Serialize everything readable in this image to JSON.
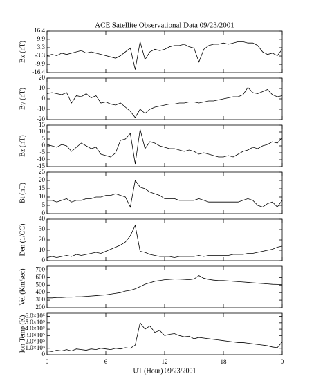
{
  "chart_data": [
    {
      "type": "line",
      "title": "ACE Satellite Observational Data   09/23/2001",
      "ylabel": "Bx (nT)",
      "color": "#000000",
      "x": [
        0,
        0.5,
        1,
        1.5,
        2,
        2.5,
        3,
        3.5,
        4,
        4.5,
        5,
        5.5,
        6,
        6.5,
        7,
        7.5,
        8,
        8.5,
        9,
        9.5,
        10,
        10.5,
        11,
        11.5,
        12,
        12.5,
        13,
        13.5,
        14,
        14.5,
        15,
        15.5,
        16,
        16.5,
        17,
        17.5,
        18,
        18.5,
        19,
        19.5,
        20,
        20.5,
        21,
        21.5,
        22,
        22.5,
        23,
        23.5,
        24
      ],
      "values": [
        -3,
        -2,
        -3,
        -1,
        -2,
        -1,
        0,
        1,
        -1,
        0,
        -1,
        -2,
        -3,
        -4,
        -5,
        -3,
        0,
        3,
        -14,
        8,
        -6,
        0,
        2,
        1,
        2,
        4,
        5,
        5,
        6,
        4,
        3,
        -8,
        2,
        5,
        6,
        6,
        7,
        6,
        7,
        8,
        8,
        7,
        7,
        5,
        0,
        -2,
        -1,
        -3,
        2
      ],
      "xlim": [
        0,
        24
      ],
      "xticks": [
        0,
        6,
        12,
        18,
        {
          "value": 24,
          "label": "0"
        }
      ],
      "ylim": [
        -16.4,
        16.4
      ],
      "yticks": [
        -16.4,
        -9.9,
        -3.3,
        3.3,
        9.9,
        16.4
      ]
    },
    {
      "type": "line",
      "ylabel": "By (nT)",
      "color": "#000000",
      "x": [
        0,
        0.5,
        1,
        1.5,
        2,
        2.5,
        3,
        3.5,
        4,
        4.5,
        5,
        5.5,
        6,
        6.5,
        7,
        7.5,
        8,
        8.5,
        9,
        9.5,
        10,
        10.5,
        11,
        11.5,
        12,
        12.5,
        13,
        13.5,
        14,
        14.5,
        15,
        15.5,
        16,
        16.5,
        17,
        17.5,
        18,
        18.5,
        19,
        19.5,
        20,
        20.5,
        21,
        21.5,
        22,
        22.5,
        23,
        23.5,
        24
      ],
      "values": [
        5,
        6,
        5,
        4,
        6,
        -4,
        3,
        2,
        5,
        1,
        3,
        -4,
        -3,
        -5,
        -6,
        -4,
        -8,
        -12,
        -18,
        -10,
        -14,
        -10,
        -8,
        -7,
        -6,
        -5,
        -5,
        -4,
        -4,
        -3,
        -3,
        -4,
        -3,
        -2,
        -2,
        -1,
        0,
        1,
        2,
        2,
        4,
        11,
        6,
        5,
        7,
        9,
        4,
        2,
        3
      ],
      "xlim": [
        0,
        24
      ],
      "xticks": [
        0,
        6,
        12,
        18,
        {
          "value": 24,
          "label": "0"
        }
      ],
      "ylim": [
        -20,
        20
      ],
      "yticks": [
        -20,
        -10,
        0,
        10,
        20
      ]
    },
    {
      "type": "line",
      "ylabel": "Bz (nT)",
      "color": "#000000",
      "x": [
        0,
        0.5,
        1,
        1.5,
        2,
        2.5,
        3,
        3.5,
        4,
        4.5,
        5,
        5.5,
        6,
        6.5,
        7,
        7.5,
        8,
        8.5,
        9,
        9.5,
        10,
        10.5,
        11,
        11.5,
        12,
        12.5,
        13,
        13.5,
        14,
        14.5,
        15,
        15.5,
        16,
        16.5,
        17,
        17.5,
        18,
        18.5,
        19,
        19.5,
        20,
        20.5,
        21,
        21.5,
        22,
        22.5,
        23,
        23.5,
        24
      ],
      "values": [
        1,
        0,
        -1,
        1,
        0,
        -4,
        -1,
        2,
        0,
        -2,
        -1,
        -6,
        -7,
        -8,
        -5,
        4,
        5,
        9,
        -13,
        12,
        -2,
        3,
        2,
        0,
        -1,
        -2,
        -2,
        -3,
        -4,
        -3,
        -4,
        -6,
        -5,
        -6,
        -7,
        -8,
        -8,
        -7,
        -8,
        -6,
        -4,
        -3,
        -1,
        -2,
        0,
        1,
        3,
        2,
        6
      ],
      "xlim": [
        0,
        24
      ],
      "xticks": [
        0,
        6,
        12,
        18,
        {
          "value": 24,
          "label": "0"
        }
      ],
      "ylim": [
        -15,
        15
      ],
      "yticks": [
        -15,
        -10,
        -5,
        0,
        5,
        10,
        15
      ]
    },
    {
      "type": "line",
      "ylabel": "Bt (nT)",
      "color": "#000000",
      "x": [
        0,
        0.5,
        1,
        1.5,
        2,
        2.5,
        3,
        3.5,
        4,
        4.5,
        5,
        5.5,
        6,
        6.5,
        7,
        7.5,
        8,
        8.5,
        9,
        9.5,
        10,
        10.5,
        11,
        11.5,
        12,
        12.5,
        13,
        13.5,
        14,
        14.5,
        15,
        15.5,
        16,
        16.5,
        17,
        17.5,
        18,
        18.5,
        19,
        19.5,
        20,
        20.5,
        21,
        21.5,
        22,
        22.5,
        23,
        23.5,
        24
      ],
      "values": [
        8,
        8,
        7,
        8,
        9,
        7,
        8,
        8,
        9,
        9,
        10,
        10,
        11,
        11,
        12,
        11,
        10,
        4,
        20,
        16,
        15,
        13,
        12,
        11,
        9,
        9,
        9,
        8,
        8,
        8,
        8,
        9,
        8,
        7,
        7,
        7,
        7,
        7,
        7,
        7,
        8,
        9,
        8,
        5,
        4,
        6,
        7,
        4,
        8
      ],
      "xlim": [
        0,
        24
      ],
      "xticks": [
        0,
        6,
        12,
        18,
        {
          "value": 24,
          "label": "0"
        }
      ],
      "ylim": [
        0,
        25
      ],
      "yticks": [
        0,
        5,
        10,
        15,
        20,
        25
      ]
    },
    {
      "type": "line",
      "ylabel": "Den (1/CC)",
      "color": "#000000",
      "x": [
        0,
        0.5,
        1,
        1.5,
        2,
        2.5,
        3,
        3.5,
        4,
        4.5,
        5,
        5.5,
        6,
        6.5,
        7,
        7.5,
        8,
        8.5,
        9,
        9.5,
        10,
        10.5,
        11,
        11.5,
        12,
        12.5,
        13,
        13.5,
        14,
        14.5,
        15,
        15.5,
        16,
        16.5,
        17,
        17.5,
        18,
        18.5,
        19,
        19.5,
        20,
        20.5,
        21,
        21.5,
        22,
        22.5,
        23,
        23.5,
        24
      ],
      "values": [
        3,
        4,
        3,
        4,
        5,
        4,
        6,
        5,
        6,
        7,
        8,
        7,
        9,
        11,
        13,
        15,
        18,
        24,
        34,
        9,
        8,
        6,
        5,
        4,
        4,
        4,
        3,
        4,
        4,
        4,
        4,
        5,
        4,
        5,
        5,
        5,
        5,
        5,
        6,
        6,
        6,
        7,
        7,
        8,
        9,
        10,
        11,
        13,
        14
      ],
      "xlim": [
        0,
        24
      ],
      "xticks": [
        0,
        6,
        12,
        18,
        {
          "value": 24,
          "label": "0"
        }
      ],
      "ylim": [
        0,
        40
      ],
      "yticks": [
        0,
        10,
        20,
        30,
        40
      ]
    },
    {
      "type": "line",
      "ylabel": "Vel (Km/sec)",
      "color": "#000000",
      "x": [
        0,
        0.5,
        1,
        1.5,
        2,
        2.5,
        3,
        3.5,
        4,
        4.5,
        5,
        5.5,
        6,
        6.5,
        7,
        7.5,
        8,
        8.5,
        9,
        9.5,
        10,
        10.5,
        11,
        11.5,
        12,
        12.5,
        13,
        13.5,
        14,
        14.5,
        15,
        15.5,
        16,
        16.5,
        17,
        17.5,
        18,
        18.5,
        19,
        19.5,
        20,
        20.5,
        21,
        21.5,
        22,
        22.5,
        23,
        23.5,
        24
      ],
      "values": [
        330,
        330,
        335,
        335,
        340,
        340,
        345,
        345,
        350,
        355,
        360,
        365,
        370,
        380,
        390,
        400,
        420,
        430,
        450,
        480,
        510,
        530,
        550,
        560,
        570,
        575,
        580,
        578,
        575,
        570,
        580,
        625,
        590,
        575,
        565,
        560,
        560,
        555,
        550,
        545,
        540,
        535,
        530,
        525,
        520,
        515,
        510,
        508,
        505
      ],
      "xlim": [
        0,
        24
      ],
      "xticks": [
        0,
        6,
        12,
        18,
        {
          "value": 24,
          "label": "0"
        }
      ],
      "ylim": [
        200,
        750
      ],
      "yticks": [
        200,
        300,
        400,
        500,
        600,
        700
      ]
    },
    {
      "type": "line",
      "ylabel": "Ion Temp (K)",
      "xlabel": "UT (Hour)  09/23/2001",
      "color": "#000000",
      "x": [
        0,
        0.5,
        1,
        1.5,
        2,
        2.5,
        3,
        3.5,
        4,
        4.5,
        5,
        5.5,
        6,
        6.5,
        7,
        7.5,
        8,
        8.5,
        9,
        9.5,
        10,
        10.5,
        11,
        11.5,
        12,
        12.5,
        13,
        13.5,
        14,
        14.5,
        15,
        15.5,
        16,
        16.5,
        17,
        17.5,
        18,
        18.5,
        19,
        19.5,
        20,
        20.5,
        21,
        21.5,
        22,
        22.5,
        23,
        23.5,
        24
      ],
      "values": [
        60000,
        50000,
        70000,
        60000,
        80000,
        60000,
        90000,
        80000,
        70000,
        90000,
        80000,
        100000,
        90000,
        80000,
        100000,
        90000,
        110000,
        100000,
        150000,
        500000,
        400000,
        450000,
        350000,
        380000,
        300000,
        320000,
        330000,
        300000,
        280000,
        290000,
        250000,
        270000,
        260000,
        250000,
        240000,
        230000,
        220000,
        210000,
        200000,
        190000,
        190000,
        180000,
        170000,
        160000,
        150000,
        140000,
        120000,
        110000,
        200000
      ],
      "xlim": [
        0,
        24
      ],
      "xticks": [
        0,
        6,
        12,
        18,
        {
          "value": 24,
          "label": "0"
        }
      ],
      "ylim": [
        0,
        650000
      ],
      "yticks": [
        0,
        {
          "value": 100000,
          "label": "1.0×10⁵"
        },
        {
          "value": 200000,
          "label": "2.0×10⁵"
        },
        {
          "value": 300000,
          "label": "3.0×10⁵"
        },
        {
          "value": 400000,
          "label": "4.0×10⁵"
        },
        {
          "value": 500000,
          "label": "5.0×10⁵"
        },
        {
          "value": 600000,
          "label": "6.0×10⁵"
        }
      ]
    }
  ]
}
